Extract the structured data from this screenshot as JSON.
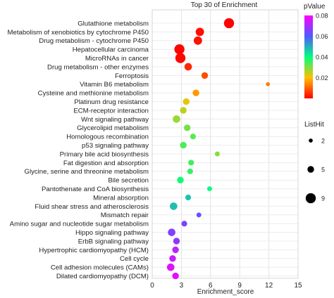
{
  "chart_data": {
    "type": "scatter",
    "title": "Top 30 of  Enrichment",
    "xlabel": "Enrichment_score",
    "ylabel": "",
    "xlim": [
      0,
      15
    ],
    "xticks": [
      0,
      3,
      6,
      9,
      12,
      15
    ],
    "grid": true,
    "color_legend": {
      "title": "pValue",
      "ticks": [
        "0.08",
        "0.06",
        "0.04",
        "0.02"
      ],
      "range": [
        0,
        0.08
      ]
    },
    "size_legend": {
      "title": "ListHit",
      "entries": [
        {
          "label": "2",
          "value": 2
        },
        {
          "label": "5",
          "value": 5
        },
        {
          "label": "9",
          "value": 9
        }
      ]
    },
    "points": [
      {
        "term": "Glutathione metabolism",
        "x": 7.9,
        "pvalue": 0.0002,
        "hits": 9
      },
      {
        "term": "Metabolism of xenobiotics by cytochrome P450",
        "x": 4.9,
        "pvalue": 0.0015,
        "hits": 7
      },
      {
        "term": "Drug metabolism - cytochrome P450",
        "x": 4.7,
        "pvalue": 0.0018,
        "hits": 7
      },
      {
        "term": "Hepatocellular carcinoma",
        "x": 2.8,
        "pvalue": 0.0005,
        "hits": 9
      },
      {
        "term": "MicroRNAs in cancer",
        "x": 2.9,
        "pvalue": 0.0008,
        "hits": 9
      },
      {
        "term": "Drug metabolism - other enzymes",
        "x": 3.7,
        "pvalue": 0.004,
        "hits": 6
      },
      {
        "term": "Ferroptosis",
        "x": 5.4,
        "pvalue": 0.008,
        "hits": 5
      },
      {
        "term": "Vitamin B6 metabolism",
        "x": 11.9,
        "pvalue": 0.013,
        "hits": 2
      },
      {
        "term": "Cysteine and methionine metabolism",
        "x": 4.5,
        "pvalue": 0.016,
        "hits": 5
      },
      {
        "term": "Platinum drug resistance",
        "x": 3.5,
        "pvalue": 0.022,
        "hits": 5
      },
      {
        "term": "ECM-receptor interaction",
        "x": 3.2,
        "pvalue": 0.025,
        "hits": 5
      },
      {
        "term": "Wnt signaling pathway",
        "x": 2.5,
        "pvalue": 0.028,
        "hits": 6
      },
      {
        "term": "Glycerolipid metabolism",
        "x": 3.6,
        "pvalue": 0.031,
        "hits": 5
      },
      {
        "term": "Homologous recombination",
        "x": 4.2,
        "pvalue": 0.033,
        "hits": 4
      },
      {
        "term": "p53 signaling pathway",
        "x": 3.2,
        "pvalue": 0.034,
        "hits": 5
      },
      {
        "term": "Primary bile acid biosynthesis",
        "x": 6.7,
        "pvalue": 0.03,
        "hits": 3
      },
      {
        "term": "Fat digestion and absorption",
        "x": 4.0,
        "pvalue": 0.035,
        "hits": 4
      },
      {
        "term": "Glycine, serine and threonine metabolism",
        "x": 3.9,
        "pvalue": 0.036,
        "hits": 4
      },
      {
        "term": "Bile secretion",
        "x": 2.9,
        "pvalue": 0.039,
        "hits": 5
      },
      {
        "term": "Pantothenate and CoA biosynthesis",
        "x": 5.9,
        "pvalue": 0.04,
        "hits": 3
      },
      {
        "term": "Mineral absorption",
        "x": 3.7,
        "pvalue": 0.047,
        "hits": 4
      },
      {
        "term": "Fluid shear stress and atherosclerosis",
        "x": 2.2,
        "pvalue": 0.048,
        "hits": 6
      },
      {
        "term": "Mismatch repair",
        "x": 4.8,
        "pvalue": 0.062,
        "hits": 3
      },
      {
        "term": "Amino sugar and nucleotide sugar metabolism",
        "x": 3.3,
        "pvalue": 0.065,
        "hits": 4
      },
      {
        "term": "Hippo signaling pathway",
        "x": 2.0,
        "pvalue": 0.066,
        "hits": 6
      },
      {
        "term": "ErbB signaling pathway",
        "x": 2.5,
        "pvalue": 0.068,
        "hits": 5
      },
      {
        "term": "Hypertrophic cardiomyopathy (HCM)",
        "x": 2.4,
        "pvalue": 0.072,
        "hits": 5
      },
      {
        "term": "Cell cycle",
        "x": 2.1,
        "pvalue": 0.074,
        "hits": 5
      },
      {
        "term": "Cell adhesion molecules (CAMs)",
        "x": 1.9,
        "pvalue": 0.076,
        "hits": 6
      },
      {
        "term": "Dilated cardiomyopathy (DCM)",
        "x": 2.4,
        "pvalue": 0.077,
        "hits": 5
      }
    ]
  }
}
